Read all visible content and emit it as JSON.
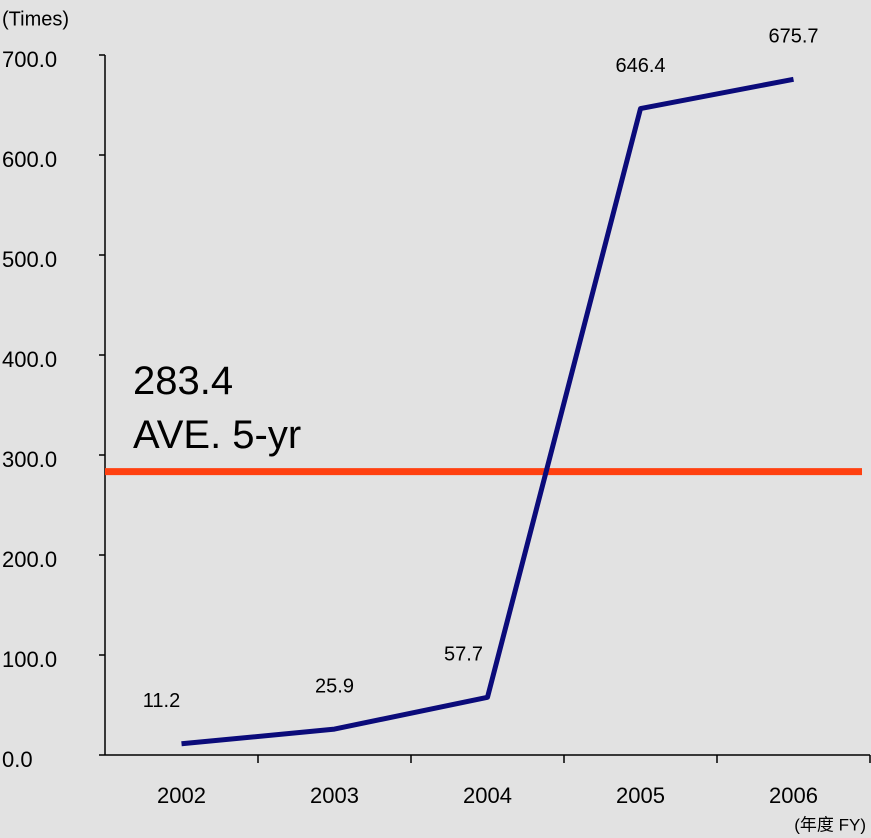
{
  "chart_data": {
    "type": "line",
    "y_label": "(Times)",
    "x_label": "(年度 FY)",
    "categories": [
      "2002",
      "2003",
      "2004",
      "2005",
      "2006"
    ],
    "series": [
      {
        "name": "Times",
        "color": "#0b0b7a",
        "values": [
          11.2,
          25.9,
          57.7,
          646.4,
          675.7
        ]
      }
    ],
    "ylim": [
      0,
      700
    ],
    "yticks": [
      {
        "value": 0,
        "label": "0.0"
      },
      {
        "value": 100,
        "label": "100.0"
      },
      {
        "value": 200,
        "label": "200.0"
      },
      {
        "value": 300,
        "label": "300.0"
      },
      {
        "value": 400,
        "label": "400.0"
      },
      {
        "value": 500,
        "label": "500.0"
      },
      {
        "value": 600,
        "label": "600.0"
      },
      {
        "value": 700,
        "label": "700.0"
      }
    ],
    "average": {
      "value": 283.4,
      "label": "AVE. 5-yr",
      "color": "#ff4010"
    }
  }
}
